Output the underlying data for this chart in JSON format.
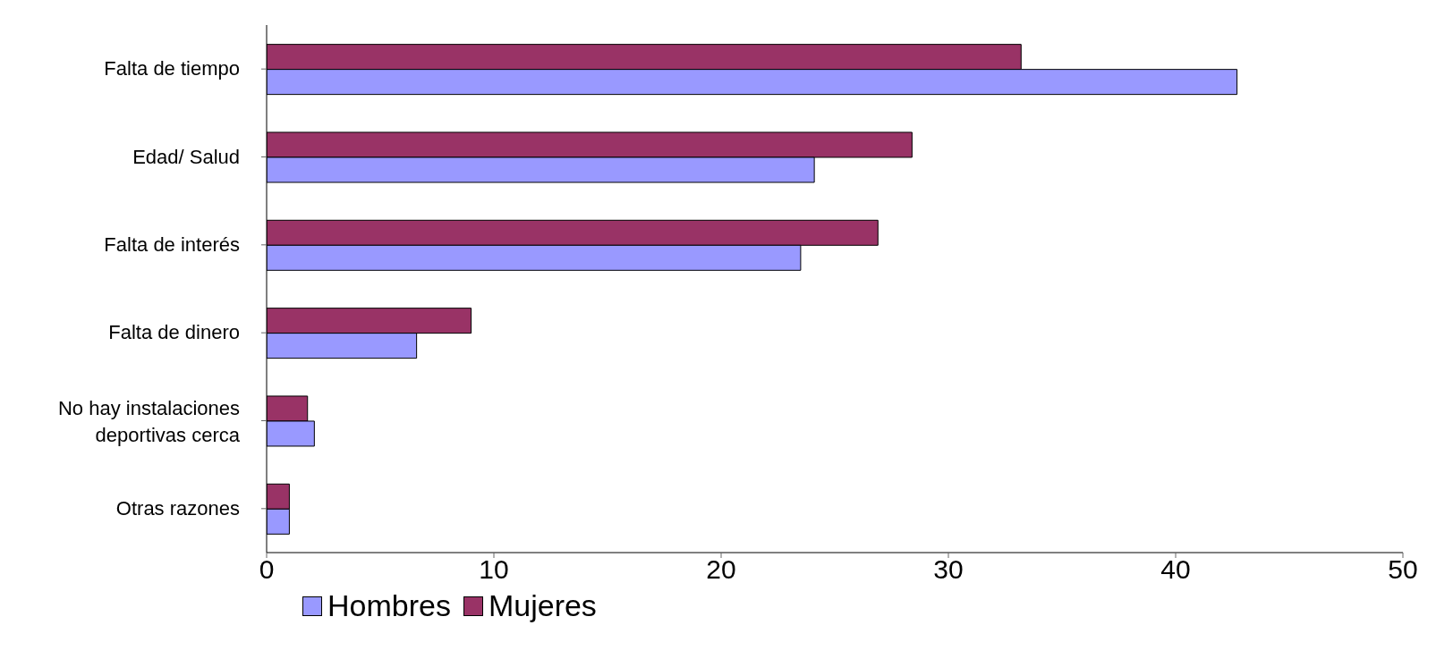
{
  "chart_data": {
    "type": "bar",
    "orientation": "horizontal",
    "categories": [
      "Falta de tiempo",
      "Edad/ Salud",
      "Falta de interés",
      "Falta de dinero",
      "No hay instalaciones deportivas cerca",
      "Otras razones"
    ],
    "series": [
      {
        "name": "Hombres",
        "color": "#9999ff",
        "values": [
          42.7,
          24.1,
          23.5,
          6.6,
          2.1,
          1.0
        ]
      },
      {
        "name": "Mujeres",
        "color": "#993366",
        "values": [
          33.2,
          28.4,
          26.9,
          9.0,
          1.8,
          1.0
        ]
      }
    ],
    "xlim": [
      0,
      50
    ],
    "xticks": [
      0,
      10,
      20,
      30,
      40,
      50
    ],
    "legend": "bottom"
  }
}
